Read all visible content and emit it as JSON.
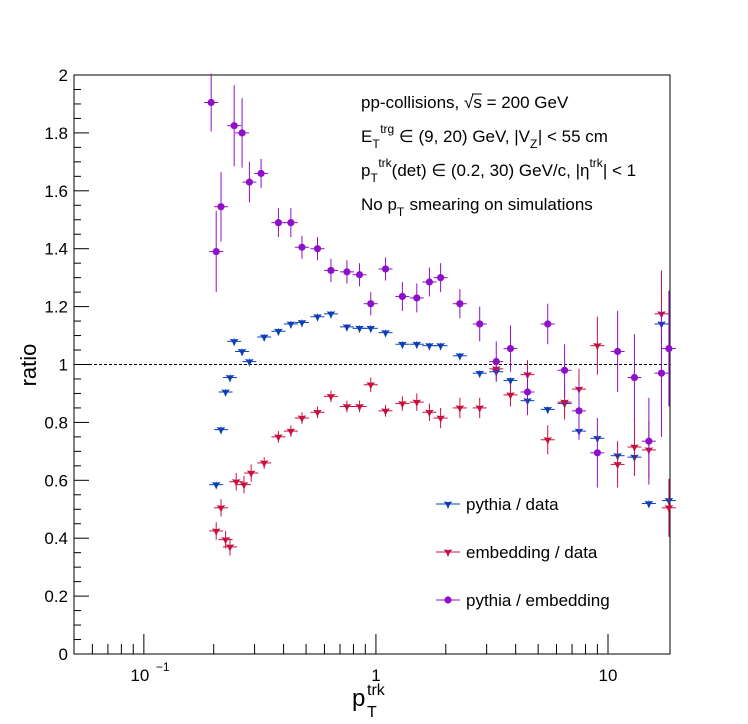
{
  "chart_data": {
    "type": "scatter",
    "xscale": "log",
    "xlim": [
      0.05,
      18.5
    ],
    "ylim": [
      0,
      2
    ],
    "y_ticks": [
      0,
      0.2,
      0.4,
      0.6,
      0.8,
      1,
      1.2,
      1.4,
      1.6,
      1.8,
      2
    ],
    "y_tick_labels": [
      "0",
      "0.2",
      "0.4",
      "0.6",
      "0.8",
      "1",
      "1.2",
      "1.4",
      "1.6",
      "1.8",
      "2"
    ],
    "x_ticks": [
      {
        "value": 0.1,
        "base": "10",
        "exp": "−1"
      },
      {
        "value": 1,
        "base": "1",
        "exp": ""
      },
      {
        "value": 10,
        "base": "10",
        "exp": ""
      }
    ],
    "xlabel_main": "p",
    "xlabel_sub": "T",
    "xlabel_sup": "trk",
    "ylabel": "ratio",
    "reference_line": 1,
    "annotations": [
      {
        "parts": [
          {
            "t": "pp-collisions, "
          },
          {
            "t": "√s",
            "over": true
          },
          {
            "t": " = 200 GeV"
          }
        ]
      },
      {
        "parts": [
          {
            "t": "E"
          },
          {
            "t": "T",
            "sub": true
          },
          {
            "t": "trg",
            "sup": true
          },
          {
            "t": " ∈ (9, 20) GeV, |V"
          },
          {
            "t": "Z",
            "sub": true
          },
          {
            "t": "| < 55 cm"
          }
        ]
      },
      {
        "parts": [
          {
            "t": "p"
          },
          {
            "t": "T",
            "sub": true
          },
          {
            "t": "trk",
            "sup": true
          },
          {
            "t": "(det) ∈ (0.2, 30) GeV/c, |η"
          },
          {
            "t": "trk",
            "sup": true
          },
          {
            "t": "| < 1"
          }
        ]
      },
      {
        "parts": [
          {
            "t": "No p"
          },
          {
            "t": "T",
            "sub": true
          },
          {
            "t": " smearing on simulations"
          }
        ]
      }
    ],
    "legend_position": "bottom-right",
    "series": [
      {
        "name": "pythia / data",
        "color": "#0b3fb8",
        "marker": "star",
        "points": [
          [
            0.205,
            0.585,
            0.01
          ],
          [
            0.215,
            0.775,
            0.01
          ],
          [
            0.225,
            0.905,
            0.01
          ],
          [
            0.235,
            0.955,
            0.01
          ],
          [
            0.245,
            1.08,
            0.01
          ],
          [
            0.265,
            1.045,
            0.01
          ],
          [
            0.285,
            1.01,
            0.01
          ],
          [
            0.33,
            1.095,
            0.01
          ],
          [
            0.38,
            1.115,
            0.01
          ],
          [
            0.43,
            1.14,
            0.01
          ],
          [
            0.48,
            1.145,
            0.01
          ],
          [
            0.56,
            1.165,
            0.01
          ],
          [
            0.64,
            1.175,
            0.01
          ],
          [
            0.75,
            1.13,
            0.01
          ],
          [
            0.85,
            1.125,
            0.01
          ],
          [
            0.95,
            1.125,
            0.01
          ],
          [
            1.1,
            1.11,
            0.01
          ],
          [
            1.3,
            1.07,
            0.01
          ],
          [
            1.5,
            1.07,
            0.01
          ],
          [
            1.7,
            1.065,
            0.01
          ],
          [
            1.9,
            1.065,
            0.01
          ],
          [
            2.3,
            1.03,
            0.01
          ],
          [
            2.8,
            0.97,
            0.01
          ],
          [
            3.3,
            0.975,
            0.01
          ],
          [
            3.8,
            0.945,
            0.01
          ],
          [
            4.5,
            0.875,
            0.01
          ],
          [
            5.5,
            0.845,
            0.01
          ],
          [
            6.5,
            0.865,
            0.01
          ],
          [
            7.5,
            0.77,
            0.01
          ],
          [
            9,
            0.745,
            0.01
          ],
          [
            11,
            0.685,
            0.01
          ],
          [
            13,
            0.68,
            0.01
          ],
          [
            15,
            0.52,
            0.01
          ],
          [
            17,
            1.14,
            0.03
          ],
          [
            18.3,
            0.53,
            0.01
          ]
        ]
      },
      {
        "name": "embedding / data",
        "color": "#c8103e",
        "marker": "star",
        "points": [
          [
            0.205,
            0.425,
            0.03
          ],
          [
            0.215,
            0.505,
            0.03
          ],
          [
            0.225,
            0.395,
            0.03
          ],
          [
            0.235,
            0.37,
            0.03
          ],
          [
            0.25,
            0.595,
            0.03
          ],
          [
            0.27,
            0.585,
            0.03
          ],
          [
            0.29,
            0.625,
            0.03
          ],
          [
            0.33,
            0.66,
            0.02
          ],
          [
            0.38,
            0.75,
            0.02
          ],
          [
            0.43,
            0.77,
            0.02
          ],
          [
            0.48,
            0.815,
            0.02
          ],
          [
            0.56,
            0.835,
            0.02
          ],
          [
            0.64,
            0.89,
            0.02
          ],
          [
            0.75,
            0.855,
            0.02
          ],
          [
            0.85,
            0.855,
            0.02
          ],
          [
            0.95,
            0.93,
            0.025
          ],
          [
            1.1,
            0.84,
            0.02
          ],
          [
            1.3,
            0.865,
            0.025
          ],
          [
            1.5,
            0.87,
            0.03
          ],
          [
            1.7,
            0.835,
            0.03
          ],
          [
            1.9,
            0.815,
            0.035
          ],
          [
            2.3,
            0.85,
            0.035
          ],
          [
            2.8,
            0.85,
            0.035
          ],
          [
            3.3,
            0.985,
            0.04
          ],
          [
            3.8,
            0.895,
            0.04
          ],
          [
            4.5,
            0.965,
            0.05
          ],
          [
            5.5,
            0.74,
            0.05
          ],
          [
            6.5,
            0.87,
            0.06
          ],
          [
            7.5,
            0.915,
            0.07
          ],
          [
            9,
            1.065,
            0.1
          ],
          [
            11,
            0.655,
            0.08
          ],
          [
            13,
            0.715,
            0.1
          ],
          [
            15,
            0.705,
            0.1
          ],
          [
            17,
            1.175,
            0.15
          ],
          [
            18.3,
            0.505,
            0.1
          ]
        ]
      },
      {
        "name": "pythia / embedding",
        "color": "#9010c8",
        "marker": "circle",
        "points": [
          [
            0.195,
            1.905,
            0.1
          ],
          [
            0.205,
            1.39,
            0.14
          ],
          [
            0.215,
            1.545,
            0.12
          ],
          [
            0.245,
            1.825,
            0.14
          ],
          [
            0.265,
            1.8,
            0.12
          ],
          [
            0.285,
            1.63,
            0.07
          ],
          [
            0.32,
            1.66,
            0.05
          ],
          [
            0.38,
            1.49,
            0.05
          ],
          [
            0.43,
            1.49,
            0.05
          ],
          [
            0.48,
            1.405,
            0.04
          ],
          [
            0.56,
            1.4,
            0.04
          ],
          [
            0.64,
            1.325,
            0.04
          ],
          [
            0.75,
            1.32,
            0.04
          ],
          [
            0.85,
            1.31,
            0.04
          ],
          [
            0.95,
            1.21,
            0.04
          ],
          [
            1.1,
            1.33,
            0.04
          ],
          [
            1.3,
            1.235,
            0.05
          ],
          [
            1.5,
            1.23,
            0.05
          ],
          [
            1.7,
            1.285,
            0.05
          ],
          [
            1.9,
            1.3,
            0.05
          ],
          [
            2.3,
            1.21,
            0.05
          ],
          [
            2.8,
            1.14,
            0.06
          ],
          [
            3.3,
            1.01,
            0.07
          ],
          [
            3.8,
            1.055,
            0.08
          ],
          [
            4.5,
            0.905,
            0.08
          ],
          [
            5.5,
            1.14,
            0.07
          ],
          [
            6.5,
            0.98,
            0.09
          ],
          [
            7.5,
            0.84,
            0.1
          ],
          [
            9,
            0.695,
            0.12
          ],
          [
            11,
            1.045,
            0.14
          ],
          [
            13,
            0.955,
            0.15
          ],
          [
            15,
            0.735,
            0.15
          ],
          [
            17,
            0.97,
            0.22
          ],
          [
            18.3,
            1.055,
            0.2
          ]
        ]
      }
    ]
  }
}
